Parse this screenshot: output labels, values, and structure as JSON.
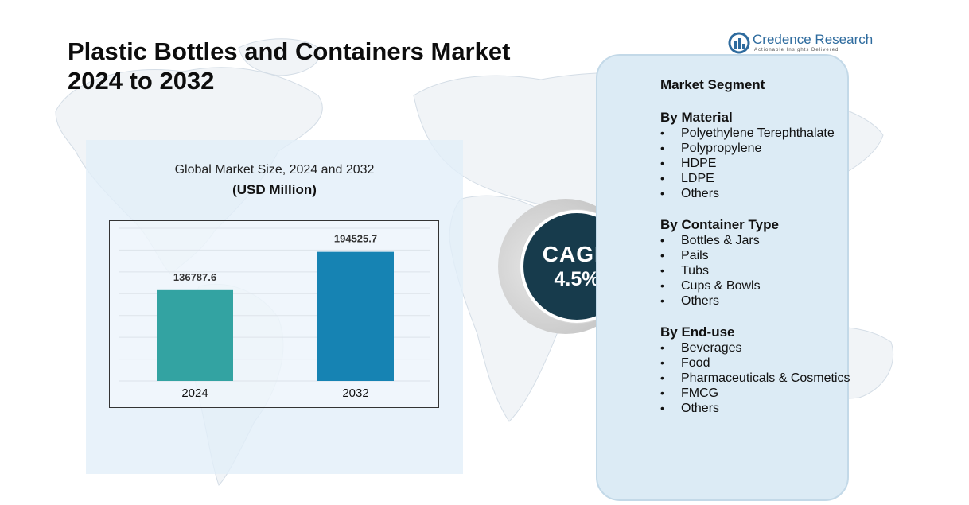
{
  "title": {
    "line1": "Plastic Bottles and Containers Market",
    "line2": "2024 to 2032"
  },
  "brand": {
    "name": "Credence Research",
    "tagline": "Actionable Insights Delivered",
    "icon": "credence-logo-icon"
  },
  "chart": {
    "title": "Global Market Size, 2024 and 2032",
    "subtitle": "(USD Million)"
  },
  "chart_data": {
    "type": "bar",
    "title": "Global Market Size, 2024 and 2032",
    "subtitle": "(USD Million)",
    "categories": [
      "2024",
      "2032"
    ],
    "values": [
      136787.6,
      194525.7
    ],
    "value_labels": [
      "136787.6",
      "194525.7"
    ],
    "colors": [
      "#33a3a2",
      "#1683b3"
    ],
    "ylim": [
      0,
      230000
    ],
    "grid": true,
    "xlabel": "",
    "ylabel": ""
  },
  "cagr": {
    "label": "CAGR",
    "value": "4.5%"
  },
  "segments": {
    "heading": "Market Segment",
    "groups": [
      {
        "title": "By Material",
        "items": [
          "Polyethylene Terephthalate",
          "Polypropylene",
          "HDPE",
          "LDPE",
          "Others"
        ]
      },
      {
        "title": "By Container Type",
        "items": [
          "Bottles & Jars",
          "Pails",
          "Tubs",
          "Cups & Bowls",
          "Others"
        ]
      },
      {
        "title": "By End-use",
        "items": [
          "Beverages",
          "Food",
          "Pharmaceuticals & Cosmetics",
          "FMCG",
          "Others"
        ]
      }
    ]
  },
  "colors": {
    "accent_dark": "#173b4c",
    "card_bg": "#dcebf5",
    "brand_blue": "#2e6b9e"
  }
}
